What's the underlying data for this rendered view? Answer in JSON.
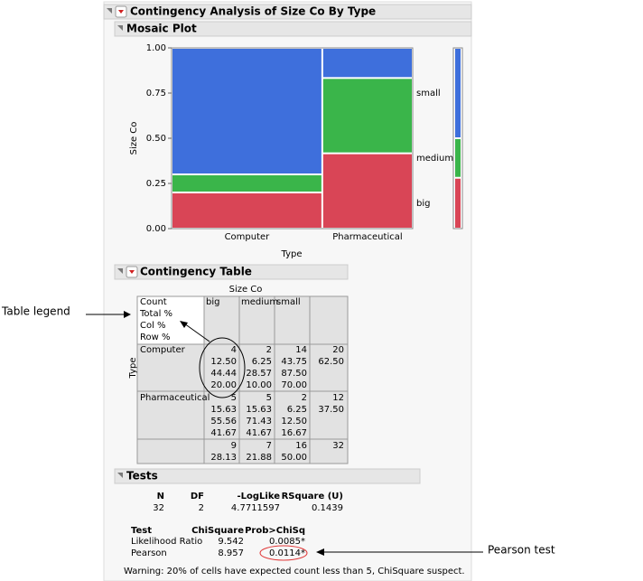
{
  "header": {
    "title": "Contingency Analysis of Size Co By Type"
  },
  "mosaic_header": "Mosaic Plot",
  "chart_data": {
    "type": "mosaic",
    "y_label": "Size Co",
    "x_label": "Type",
    "categories": [
      "Computer",
      "Pharmaceutical"
    ],
    "widths": [
      0.625,
      0.375
    ],
    "series": [
      {
        "name": "big",
        "color": "#d94556",
        "values": [
          0.2,
          0.4167
        ],
        "marginal": 0.28125
      },
      {
        "name": "medium",
        "color": "#3ab54a",
        "values": [
          0.1,
          0.4167
        ],
        "marginal": 0.21875
      },
      {
        "name": "small",
        "color": "#3e6fdc",
        "values": [
          0.7,
          0.1667
        ],
        "marginal": 0.5
      }
    ],
    "ylim": [
      0,
      1
    ],
    "yticks": [
      {
        "value": 0,
        "label": "0.00"
      },
      {
        "value": 0.25,
        "label": "0.25"
      },
      {
        "value": 0.5,
        "label": "0.50"
      },
      {
        "value": 0.75,
        "label": "0.75"
      },
      {
        "value": 1,
        "label": "1.00"
      }
    ]
  },
  "contingency_table": {
    "title": "Contingency Table",
    "column_title": "Size Co",
    "row_title": "Type",
    "legend": [
      "Count",
      "Total %",
      "Col %",
      "Row %"
    ],
    "columns": [
      "big",
      "medium",
      "small"
    ],
    "rows": [
      {
        "label": "Computer",
        "cells": [
          [
            "4",
            "12.50",
            "44.44",
            "20.00"
          ],
          [
            "2",
            "6.25",
            "28.57",
            "10.00"
          ],
          [
            "14",
            "43.75",
            "87.50",
            "70.00"
          ]
        ],
        "total": [
          "20",
          "62.50"
        ]
      },
      {
        "label": "Pharmaceutical",
        "cells": [
          [
            "5",
            "15.63",
            "55.56",
            "41.67"
          ],
          [
            "5",
            "15.63",
            "71.43",
            "41.67"
          ],
          [
            "2",
            "6.25",
            "12.50",
            "16.67"
          ]
        ],
        "total": [
          "12",
          "37.50"
        ]
      }
    ],
    "column_totals": [
      [
        "9",
        "28.13"
      ],
      [
        "7",
        "21.88"
      ],
      [
        "16",
        "50.00"
      ]
    ],
    "grand_total": "32"
  },
  "tests": {
    "title": "Tests",
    "summary_headers": [
      "N",
      "DF",
      "-LogLike",
      "RSquare (U)"
    ],
    "summary_values": [
      "32",
      "2",
      "4.7711597",
      "0.1439"
    ],
    "test_headers": [
      "Test",
      "ChiSquare",
      "Prob>ChiSq"
    ],
    "test_rows": [
      [
        "Likelihood Ratio",
        "9.542",
        "0.0085*"
      ],
      [
        "Pearson",
        "8.957",
        "0.0114*"
      ]
    ],
    "warning": "Warning: 20% of cells have expected count less than 5, ChiSquare suspect."
  },
  "annotations": {
    "table_legend": "Table legend",
    "pearson_test": "Pearson test"
  }
}
